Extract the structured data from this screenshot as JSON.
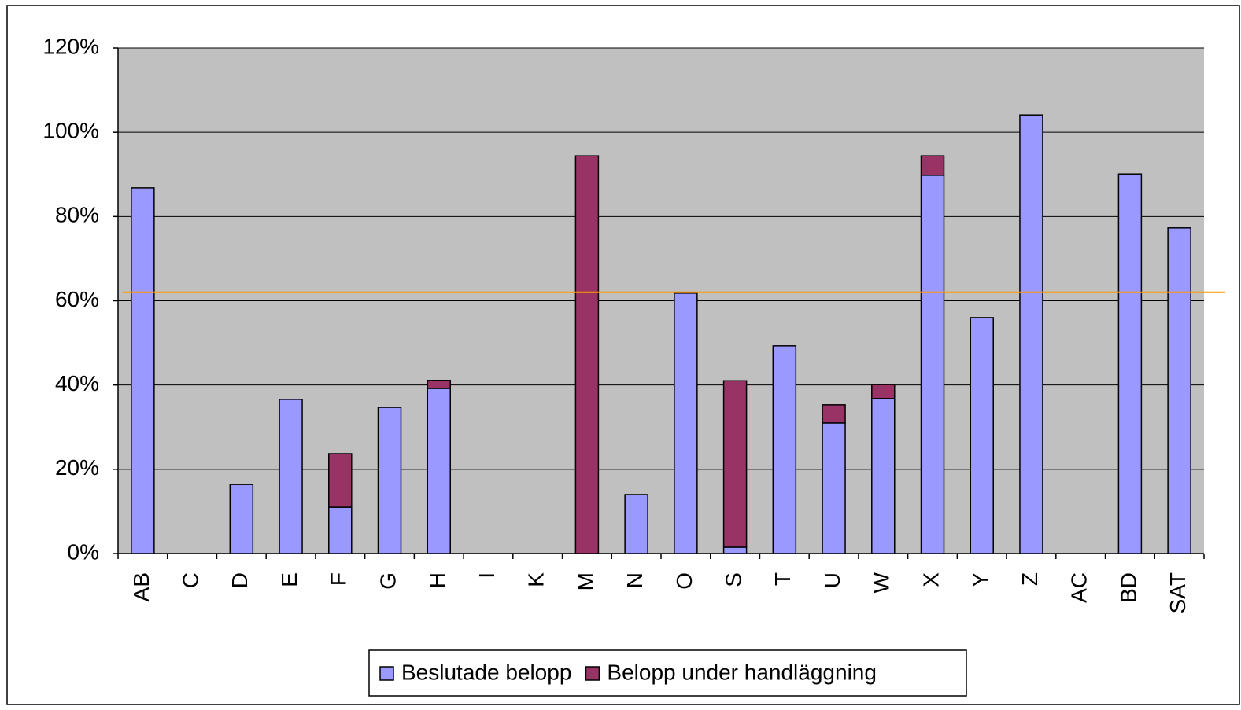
{
  "chart_data": {
    "type": "bar",
    "stacked": true,
    "categories": [
      "AB",
      "C",
      "D",
      "E",
      "F",
      "G",
      "H",
      "I",
      "K",
      "M",
      "N",
      "O",
      "S",
      "T",
      "U",
      "W",
      "X",
      "Y",
      "Z",
      "AC",
      "BD",
      "SAT"
    ],
    "series": [
      {
        "name": "Beslutade belopp",
        "color": "#9999ff",
        "values": [
          86.8,
          0,
          16.4,
          36.6,
          11.0,
          34.7,
          39.2,
          0,
          0,
          0,
          14.0,
          61.8,
          1.5,
          49.3,
          31.0,
          36.8,
          89.8,
          56.0,
          104.1,
          0,
          90.1,
          77.3
        ]
      },
      {
        "name": "Belopp under handläggning",
        "color": "#993366",
        "values": [
          0,
          0,
          0,
          0,
          12.7,
          0,
          1.9,
          0,
          0,
          94.4,
          0,
          0,
          39.5,
          0,
          4.3,
          3.3,
          4.6,
          0,
          0,
          0,
          0,
          0
        ]
      }
    ],
    "ylim": [
      0,
      120
    ],
    "yticks": [
      {
        "value": 0,
        "label": "0%"
      },
      {
        "value": 20,
        "label": "20%"
      },
      {
        "value": 40,
        "label": "40%"
      },
      {
        "value": 60,
        "label": "60%"
      },
      {
        "value": 80,
        "label": "80%"
      },
      {
        "value": 100,
        "label": "100%"
      },
      {
        "value": 120,
        "label": "120%"
      }
    ],
    "grid": true,
    "reference_line": {
      "value": 62,
      "color": "#ff9900"
    },
    "legend": "bottom"
  }
}
